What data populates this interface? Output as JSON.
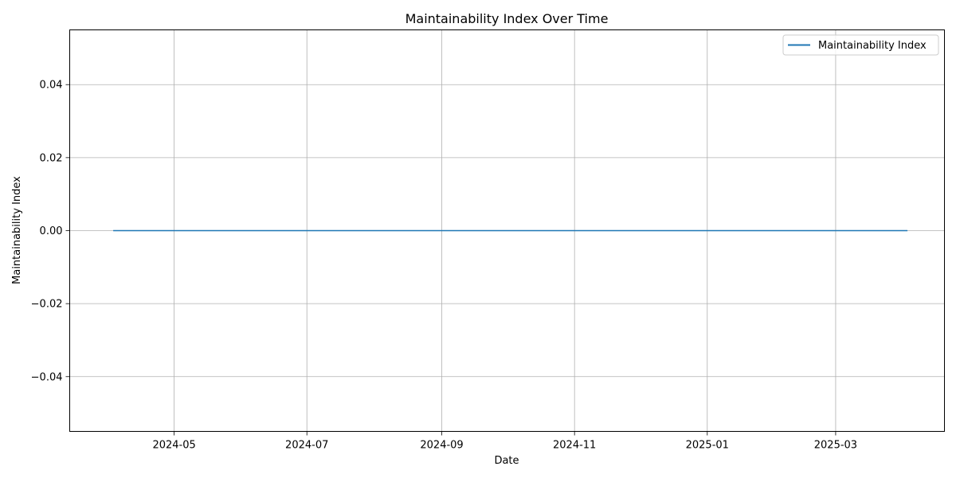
{
  "chart_data": {
    "type": "line",
    "title": "Maintainability Index Over Time",
    "xlabel": "Date",
    "ylabel": "Maintainability Index",
    "x_ticks": [
      "2024-05",
      "2024-07",
      "2024-09",
      "2024-11",
      "2025-01",
      "2025-03"
    ],
    "y_ticks": [
      "−0.04",
      "−0.02",
      "0.00",
      "0.02",
      "0.04"
    ],
    "y_tick_values": [
      -0.04,
      -0.02,
      0.0,
      0.02,
      0.04
    ],
    "xlim": [
      "2024-03-14",
      "2025-04-20"
    ],
    "ylim": [
      -0.055,
      0.055
    ],
    "grid": true,
    "legend_position": "top-right",
    "series": [
      {
        "name": "Maintainability Index",
        "color": "#1f77b4",
        "x": [
          "2024-04-03",
          "2025-04-03"
        ],
        "values": [
          0,
          0
        ]
      }
    ]
  }
}
